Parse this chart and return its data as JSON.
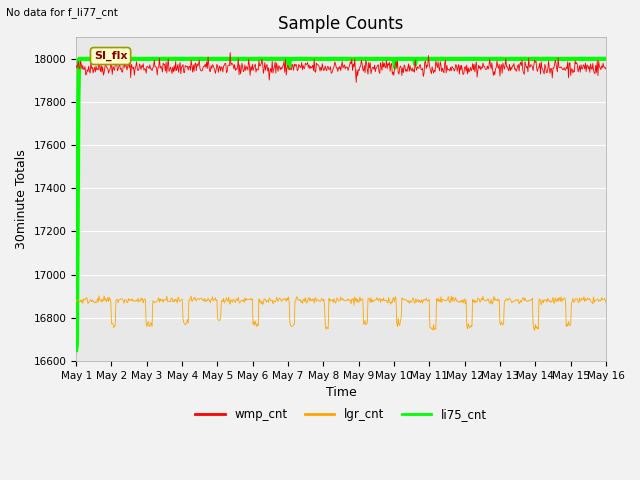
{
  "title": "Sample Counts",
  "top_left_text": "No data for f_li77_cnt",
  "ylabel": "30minute Totals",
  "xlabel": "Time",
  "annotation_box_text": "SI_flx",
  "ylim": [
    16600,
    18100
  ],
  "yticks": [
    16600,
    16800,
    17000,
    17200,
    17400,
    17600,
    17800,
    18000
  ],
  "xtick_labels": [
    "May 1",
    "May 2",
    "May 3",
    "May 4",
    "May 5",
    "May 6",
    "May 7",
    "May 8",
    "May 9",
    "May 10",
    "May 11",
    "May 12",
    "May 13",
    "May 14",
    "May 15",
    "May 16"
  ],
  "wmp_cnt_base": 17960,
  "wmp_cnt_noise": 18,
  "lgr_cnt_base": 16880,
  "lgr_cnt_noise": 8,
  "lgr_cnt_dip_depth": 100,
  "li75_cnt_base": 18000,
  "colors": {
    "wmp_cnt": "#ff0000",
    "lgr_cnt": "#ffa500",
    "li75_cnt": "#00ff00",
    "background": "#e8e8e8",
    "annotation_box_bg": "#ffffcc",
    "annotation_box_edge": "#999900"
  },
  "legend_entries": [
    "wmp_cnt",
    "lgr_cnt",
    "li75_cnt"
  ],
  "line_widths": {
    "wmp_cnt": 0.6,
    "lgr_cnt": 0.6,
    "li75_cnt": 3.0
  },
  "grid_color": "#ffffff",
  "title_fontsize": 12,
  "label_fontsize": 9,
  "tick_fontsize": 7.5
}
